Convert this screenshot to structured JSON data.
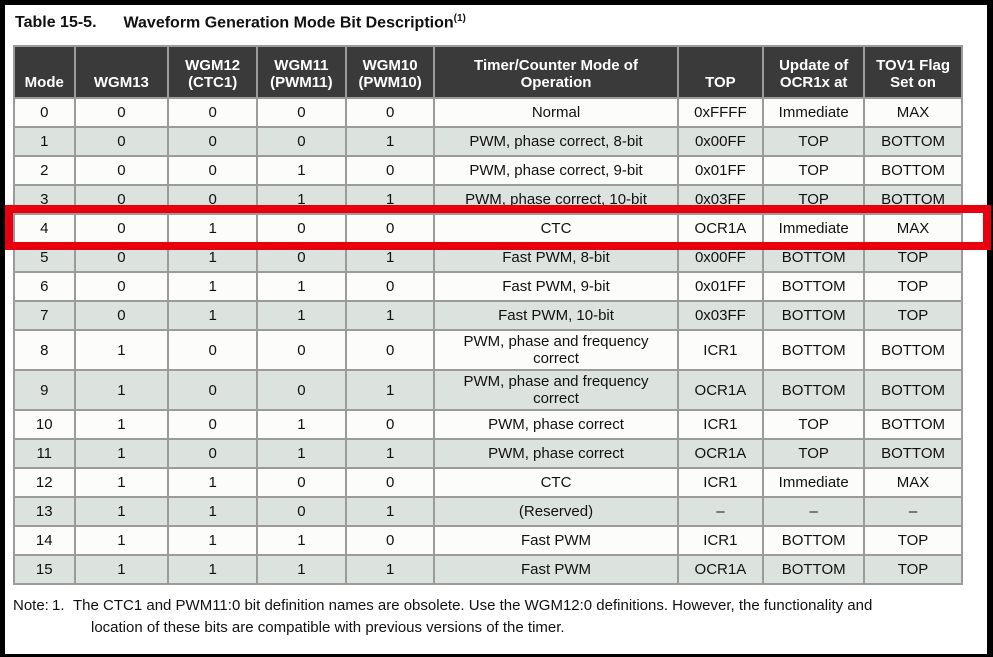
{
  "title": {
    "label": "Table 15-5.",
    "text": "Waveform Generation Mode Bit Description",
    "superscript": "(1)"
  },
  "table": {
    "columns": [
      {
        "label": "Mode"
      },
      {
        "label": "WGM13"
      },
      {
        "label": "WGM12\n(CTC1)"
      },
      {
        "label": "WGM11\n(PWM11)"
      },
      {
        "label": "WGM10\n(PWM10)"
      },
      {
        "label": "Timer/Counter Mode of\nOperation"
      },
      {
        "label": "TOP"
      },
      {
        "label": "Update of\nOCR1x at"
      },
      {
        "label": "TOV1 Flag\nSet on"
      }
    ],
    "rows": [
      [
        "0",
        "0",
        "0",
        "0",
        "0",
        "Normal",
        "0xFFFF",
        "Immediate",
        "MAX"
      ],
      [
        "1",
        "0",
        "0",
        "0",
        "1",
        "PWM, phase correct, 8-bit",
        "0x00FF",
        "TOP",
        "BOTTOM"
      ],
      [
        "2",
        "0",
        "0",
        "1",
        "0",
        "PWM, phase correct, 9-bit",
        "0x01FF",
        "TOP",
        "BOTTOM"
      ],
      [
        "3",
        "0",
        "0",
        "1",
        "1",
        "PWM, phase correct, 10-bit",
        "0x03FF",
        "TOP",
        "BOTTOM"
      ],
      [
        "4",
        "0",
        "1",
        "0",
        "0",
        "CTC",
        "OCR1A",
        "Immediate",
        "MAX"
      ],
      [
        "5",
        "0",
        "1",
        "0",
        "1",
        "Fast PWM, 8-bit",
        "0x00FF",
        "BOTTOM",
        "TOP"
      ],
      [
        "6",
        "0",
        "1",
        "1",
        "0",
        "Fast PWM, 9-bit",
        "0x01FF",
        "BOTTOM",
        "TOP"
      ],
      [
        "7",
        "0",
        "1",
        "1",
        "1",
        "Fast PWM, 10-bit",
        "0x03FF",
        "BOTTOM",
        "TOP"
      ],
      [
        "8",
        "1",
        "0",
        "0",
        "0",
        "PWM, phase and frequency correct",
        "ICR1",
        "BOTTOM",
        "BOTTOM"
      ],
      [
        "9",
        "1",
        "0",
        "0",
        "1",
        "PWM, phase and frequency correct",
        "OCR1A",
        "BOTTOM",
        "BOTTOM"
      ],
      [
        "10",
        "1",
        "0",
        "1",
        "0",
        "PWM, phase correct",
        "ICR1",
        "TOP",
        "BOTTOM"
      ],
      [
        "11",
        "1",
        "0",
        "1",
        "1",
        "PWM, phase correct",
        "OCR1A",
        "TOP",
        "BOTTOM"
      ],
      [
        "12",
        "1",
        "1",
        "0",
        "0",
        "CTC",
        "ICR1",
        "Immediate",
        "MAX"
      ],
      [
        "13",
        "1",
        "1",
        "0",
        "1",
        "(Reserved)",
        "–",
        "–",
        "–"
      ],
      [
        "14",
        "1",
        "1",
        "1",
        "0",
        "Fast PWM",
        "ICR1",
        "BOTTOM",
        "TOP"
      ],
      [
        "15",
        "1",
        "1",
        "1",
        "1",
        "Fast PWM",
        "OCR1A",
        "BOTTOM",
        "TOP"
      ]
    ],
    "highlight_row": 4
  },
  "note": {
    "label": "Note:",
    "number": "1.",
    "text": "The CTC1 and PWM11:0 bit definition names are obsolete. Use the WGM12:0 definitions. However, the functionality and location of these bits are compatible with previous versions of the timer."
  },
  "colors": {
    "header_bg": "#3a3a3a",
    "row_alt": "#dce2de",
    "row_base": "#fcfcfb",
    "cell_border": "#9b9b9b",
    "highlight_red": "#e8000f",
    "frame_black": "#000000"
  }
}
